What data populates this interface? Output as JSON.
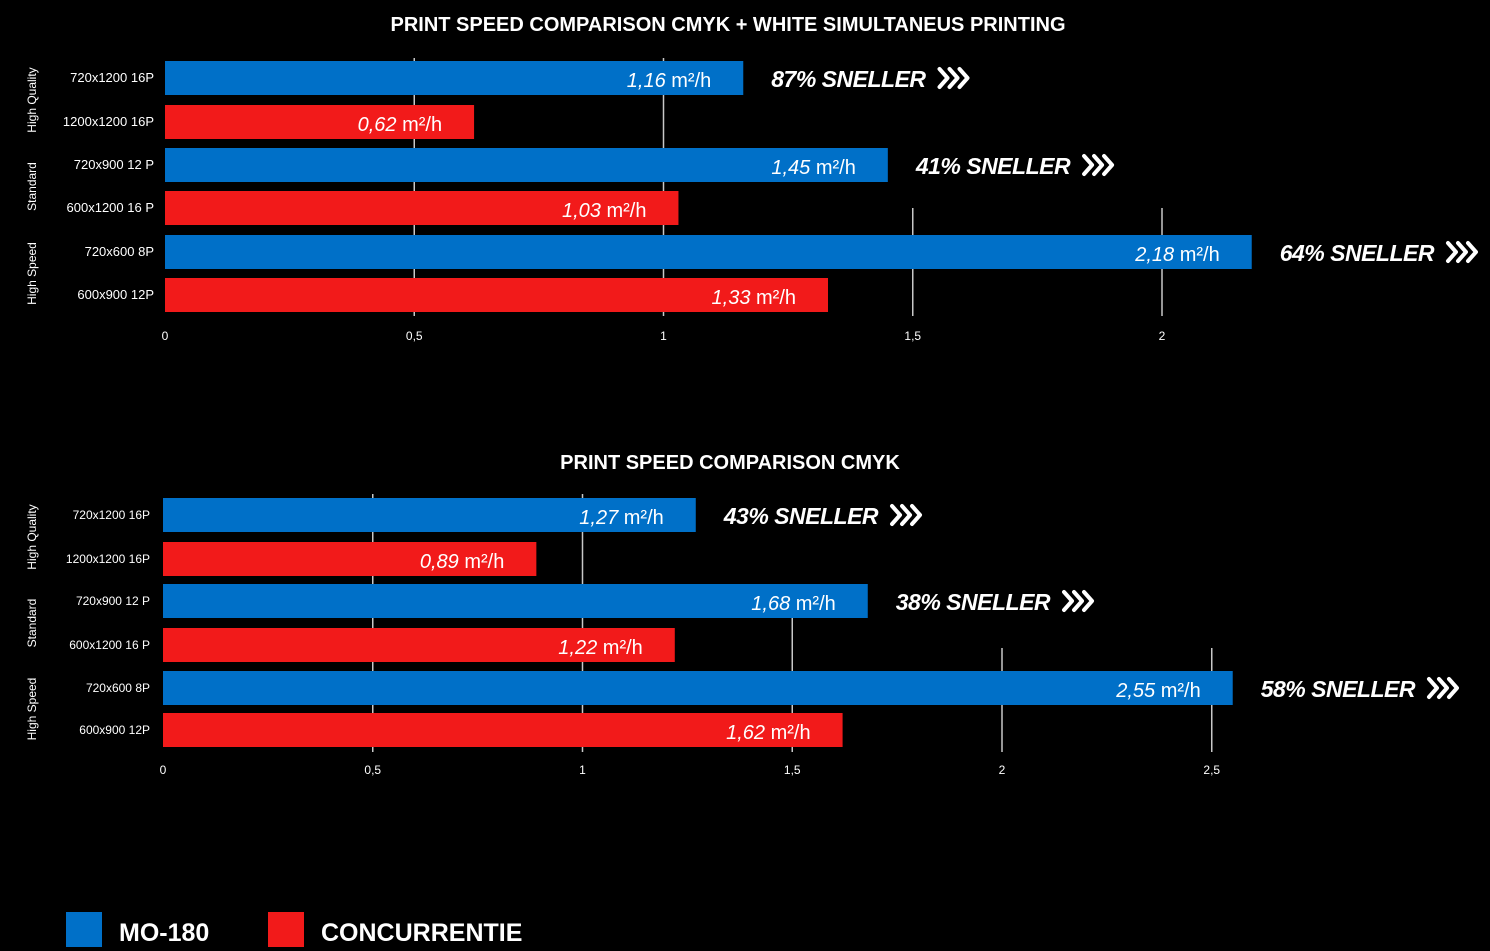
{
  "legend": {
    "series": [
      {
        "name": "MO-180",
        "color": "#0070c8"
      },
      {
        "name": "CONCURRENTIE",
        "color": "#f21a1a"
      }
    ]
  },
  "chart_data": [
    {
      "type": "bar",
      "orientation": "horizontal",
      "title": "PRINT SPEED  COMPARISON CMYK + WHITE SIMULTANEUS PRINTING",
      "xlim": [
        0,
        2.2
      ],
      "xticks": [
        "0",
        "0,5",
        "1",
        "1,5",
        "2"
      ],
      "xtick_values": [
        0,
        0.5,
        1,
        1.5,
        2
      ],
      "unit": "m²/h",
      "groups": [
        {
          "name": "High Quality",
          "rows": [
            {
              "label": "720x1200 16P",
              "series": "MO-180",
              "value": 1.16,
              "value_label": "1,16",
              "badge": "87% SNELLER"
            },
            {
              "label": "1200x1200 16P",
              "series": "CONCURRENTIE",
              "value": 0.62,
              "value_label": "0,62"
            }
          ]
        },
        {
          "name": "Standard",
          "rows": [
            {
              "label": "720x900 12 P",
              "series": "MO-180",
              "value": 1.45,
              "value_label": "1,45",
              "badge": "41% SNELLER"
            },
            {
              "label": "600x1200 16 P",
              "series": "CONCURRENTIE",
              "value": 1.03,
              "value_label": "1,03"
            }
          ]
        },
        {
          "name": "High Speed",
          "rows": [
            {
              "label": "720x600 8P",
              "series": "MO-180",
              "value": 2.18,
              "value_label": "2,18",
              "badge": "64% SNELLER"
            },
            {
              "label": "600x900 12P",
              "series": "CONCURRENTIE",
              "value": 1.33,
              "value_label": "1,33"
            }
          ]
        }
      ]
    },
    {
      "type": "bar",
      "orientation": "horizontal",
      "title": "PRINT SPEED  COMPARISON CMYK",
      "xlim": [
        0,
        2.55
      ],
      "xticks": [
        "0",
        "0,5",
        "1",
        "1,5",
        "2",
        "2,5"
      ],
      "xtick_values": [
        0,
        0.5,
        1,
        1.5,
        2,
        2.5
      ],
      "unit": "m²/h",
      "groups": [
        {
          "name": "High Quality",
          "rows": [
            {
              "label": "720x1200 16P",
              "series": "MO-180",
              "value": 1.27,
              "value_label": "1,27",
              "badge": "43% SNELLER"
            },
            {
              "label": "1200x1200 16P",
              "series": "CONCURRENTIE",
              "value": 0.89,
              "value_label": "0,89"
            }
          ]
        },
        {
          "name": "Standard",
          "rows": [
            {
              "label": "720x900 12 P",
              "series": "MO-180",
              "value": 1.68,
              "value_label": "1,68",
              "badge": "38% SNELLER"
            },
            {
              "label": "600x1200 16 P",
              "series": "CONCURRENTIE",
              "value": 1.22,
              "value_label": "1,22"
            }
          ]
        },
        {
          "name": "High Speed",
          "rows": [
            {
              "label": "720x600 8P",
              "series": "MO-180",
              "value": 2.55,
              "value_label": "2,55",
              "badge": "58% SNELLER"
            },
            {
              "label": "600x900 12P",
              "series": "CONCURRENTIE",
              "value": 1.62,
              "value_label": "1,62"
            }
          ]
        }
      ]
    }
  ]
}
